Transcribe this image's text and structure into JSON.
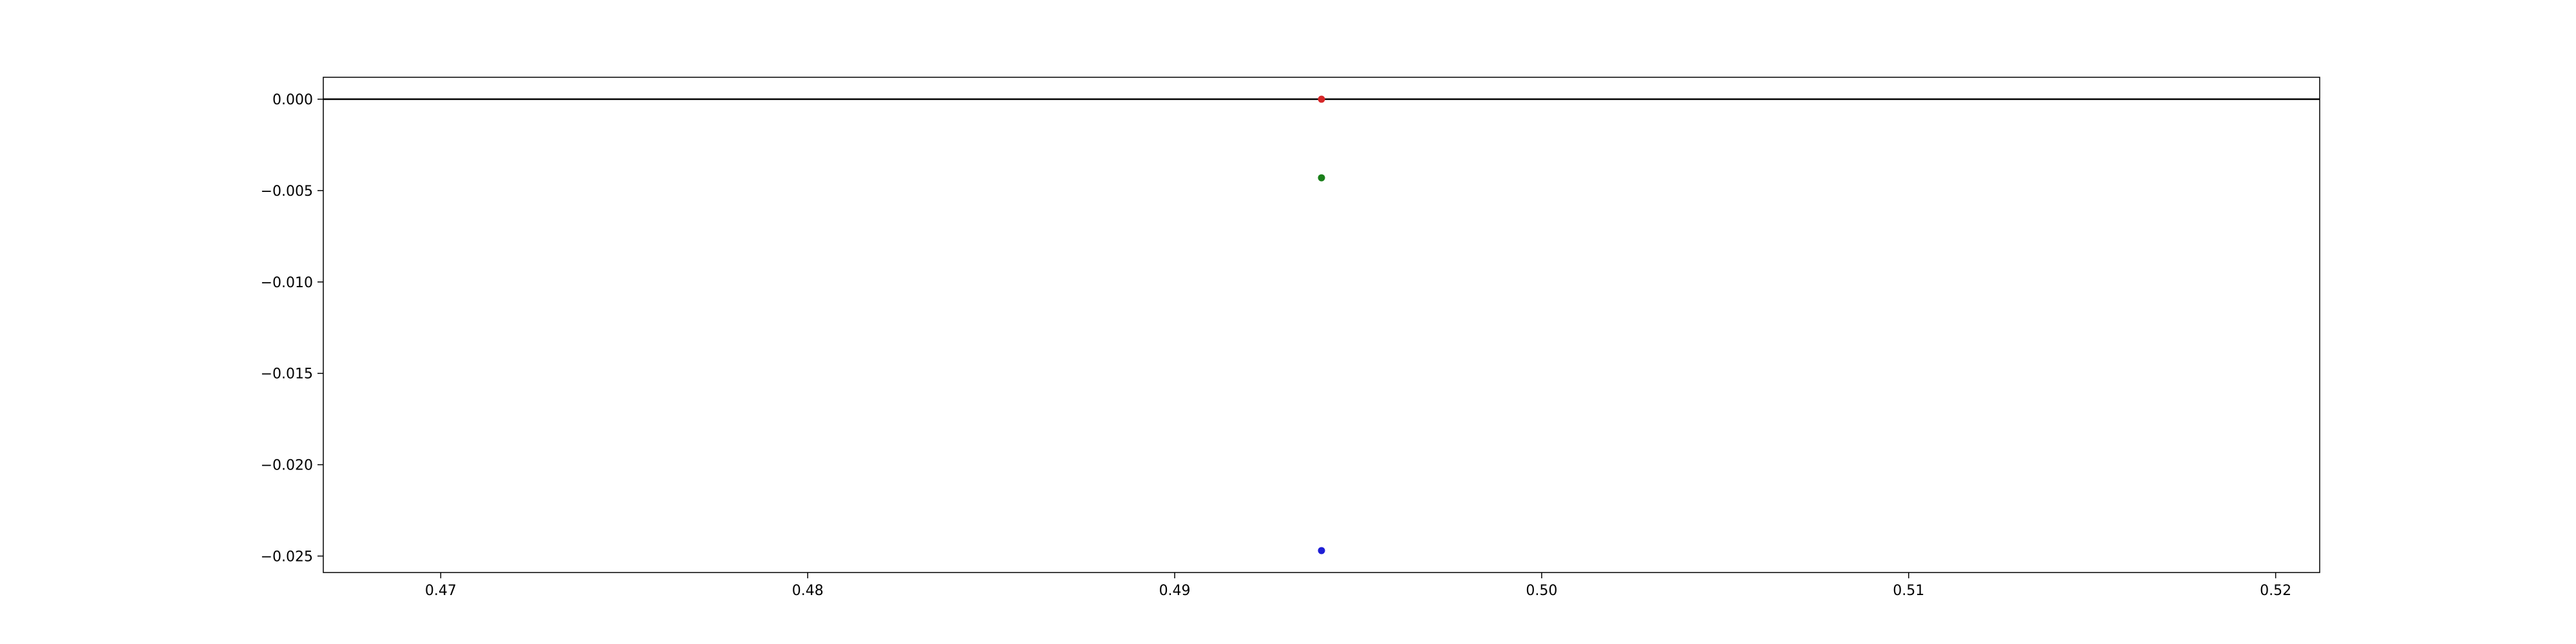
{
  "chart_data": {
    "type": "scatter",
    "title": "",
    "xlabel": "",
    "ylabel": "",
    "xlim": [
      0.4668,
      0.5212
    ],
    "ylim": [
      -0.0259,
      0.0012
    ],
    "x_ticks": [
      0.47,
      0.48,
      0.49,
      0.5,
      0.51,
      0.52
    ],
    "x_tick_labels": [
      "0.47",
      "0.48",
      "0.49",
      "0.50",
      "0.51",
      "0.52"
    ],
    "y_ticks": [
      0.0,
      -0.005,
      -0.01,
      -0.015,
      -0.02,
      -0.025
    ],
    "y_tick_labels": [
      "0.000",
      "−0.005",
      "−0.010",
      "−0.015",
      "−0.020",
      "−0.025"
    ],
    "grid": false,
    "legend": "none",
    "reference_line": {
      "y": 0.0,
      "color": "#000000"
    },
    "points": [
      {
        "x": 0.494,
        "y": 0.0,
        "color": "#d62728"
      },
      {
        "x": 0.494,
        "y": -0.0043,
        "color": "#1a7f1a"
      },
      {
        "x": 0.494,
        "y": -0.0247,
        "color": "#1f1fd6"
      }
    ]
  }
}
